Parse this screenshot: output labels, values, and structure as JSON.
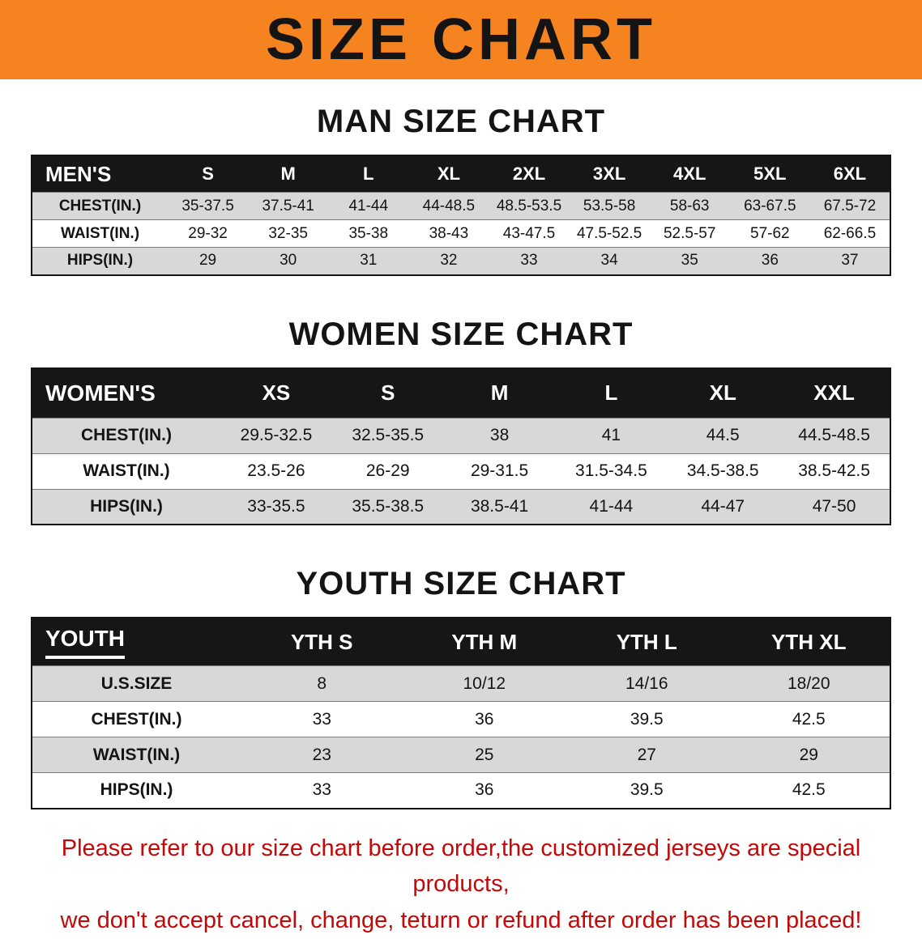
{
  "banner": {
    "title": "SIZE CHART",
    "bg_color": "#f5831f",
    "text_color": "#141414"
  },
  "colors": {
    "table_header_bg": "#161616",
    "row_alt_gray": "#d8d8d8",
    "footer_red": "#c40808"
  },
  "chart_data": [
    {
      "type": "table",
      "id": "men",
      "title": "MAN SIZE CHART",
      "columns": [
        "MEN'S",
        "S",
        "M",
        "L",
        "XL",
        "2XL",
        "3XL",
        "4XL",
        "5XL",
        "6XL"
      ],
      "rows": [
        [
          "CHEST(IN.)",
          "35-37.5",
          "37.5-41",
          "41-44",
          "44-48.5",
          "48.5-53.5",
          "53.5-58",
          "58-63",
          "63-67.5",
          "67.5-72"
        ],
        [
          "WAIST(IN.)",
          "29-32",
          "32-35",
          "35-38",
          "38-43",
          "43-47.5",
          "47.5-52.5",
          "52.5-57",
          "57-62",
          "62-66.5"
        ],
        [
          "HIPS(IN.)",
          "29",
          "30",
          "31",
          "32",
          "33",
          "34",
          "35",
          "36",
          "37"
        ]
      ],
      "header_underline": false
    },
    {
      "type": "table",
      "id": "women",
      "title": "WOMEN SIZE CHART",
      "columns": [
        "WOMEN'S",
        "XS",
        "S",
        "M",
        "L",
        "XL",
        "XXL"
      ],
      "rows": [
        [
          "CHEST(IN.)",
          "29.5-32.5",
          "32.5-35.5",
          "38",
          "41",
          "44.5",
          "44.5-48.5"
        ],
        [
          "WAIST(IN.)",
          "23.5-26",
          "26-29",
          "29-31.5",
          "31.5-34.5",
          "34.5-38.5",
          "38.5-42.5"
        ],
        [
          "HIPS(IN.)",
          "33-35.5",
          "35.5-38.5",
          "38.5-41",
          "41-44",
          "44-47",
          "47-50"
        ]
      ],
      "header_underline": false
    },
    {
      "type": "table",
      "id": "youth",
      "title": "YOUTH SIZE CHART",
      "columns": [
        "YOUTH",
        "YTH S",
        "YTH M",
        "YTH L",
        "YTH XL"
      ],
      "rows": [
        [
          "U.S.SIZE",
          "8",
          "10/12",
          "14/16",
          "18/20"
        ],
        [
          "CHEST(IN.)",
          "33",
          "36",
          "39.5",
          "42.5"
        ],
        [
          "WAIST(IN.)",
          "23",
          "25",
          "27",
          "29"
        ],
        [
          "HIPS(IN.)",
          "33",
          "36",
          "39.5",
          "42.5"
        ]
      ],
      "header_underline": true
    }
  ],
  "footer": {
    "line1": "Please refer to our size chart before order,the customized jerseys are special products,",
    "line2": "we don't accept cancel, change, teturn or refund after order has been placed!"
  }
}
